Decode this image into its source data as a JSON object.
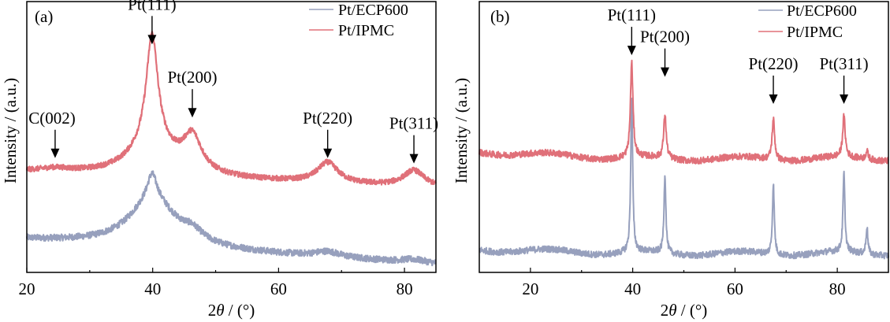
{
  "chart_data": [
    {
      "type": "line",
      "panel_label": "(a)",
      "title": "",
      "xlabel": "2θ / (°)",
      "ylabel": "Intensity / (a.u.)",
      "xlim": [
        20,
        85
      ],
      "xticks": [
        20,
        40,
        60,
        80
      ],
      "xticks_minor": [
        30,
        50,
        70
      ],
      "yticks": [],
      "grid": false,
      "legend_position": "top-right",
      "series": [
        {
          "name": "Pt/ECP600",
          "color": "#97a0bd",
          "baseline": [
            [
              20,
              0.12
            ],
            [
              30,
              0.15
            ],
            [
              36,
              0.22
            ],
            [
              40,
              0.4
            ],
            [
              42,
              0.23
            ],
            [
              46,
              0.17
            ],
            [
              50,
              0.11
            ],
            [
              60,
              0.07
            ],
            [
              68,
              0.085
            ],
            [
              75,
              0.055
            ],
            [
              81.5,
              0.07
            ],
            [
              85,
              0.04
            ]
          ],
          "peaks": [
            {
              "pos": 39.9,
              "height": 0.2,
              "width": 1.4
            },
            {
              "pos": 46.3,
              "height": 0.04,
              "width": 1.5
            },
            {
              "pos": 67.8,
              "height": 0.025,
              "width": 1.8
            },
            {
              "pos": 81.5,
              "height": 0.015,
              "width": 1.8
            }
          ],
          "noise": 0.012
        },
        {
          "name": "Pt/IPMC",
          "color": "#e07079",
          "baseline": [
            [
              20,
              0.38
            ],
            [
              25,
              0.395
            ],
            [
              30,
              0.39
            ],
            [
              35,
              0.43
            ],
            [
              37,
              0.5
            ]
          ],
          "base_level": 0.34,
          "peaks": [
            {
              "pos": 39.9,
              "height": 0.53,
              "width": 1.3,
              "shoulder": 0.16
            },
            {
              "pos": 46.3,
              "height": 0.22,
              "width": 2.0
            },
            {
              "pos": 67.8,
              "height": 0.09,
              "width": 2.2
            },
            {
              "pos": 81.5,
              "height": 0.06,
              "width": 2.2
            },
            {
              "pos": 24.5,
              "height": 0.01,
              "width": 3.0
            }
          ],
          "noise": 0.01
        }
      ],
      "annotations": [
        {
          "text": "C(002)",
          "x": 24.5,
          "label_x": 24,
          "label_y": 0.55
        },
        {
          "text": "Pt(111)",
          "x": 39.9,
          "label_x": 39.9,
          "label_y": 0.97
        },
        {
          "text": "Pt(200)",
          "x": 46.3,
          "label_x": 46.3,
          "label_y": 0.7
        },
        {
          "text": "Pt(220)",
          "x": 67.8,
          "label_x": 67.8,
          "label_y": 0.55
        },
        {
          "text": "Pt(311)",
          "x": 81.5,
          "label_x": 81.5,
          "label_y": 0.53
        }
      ]
    },
    {
      "type": "line",
      "panel_label": "(b)",
      "title": "",
      "xlabel": "2θ / (°)",
      "ylabel": "Intensity / (a.u.)",
      "xlim": [
        10,
        90
      ],
      "xticks": [
        20,
        40,
        60,
        80
      ],
      "xticks_minor": [
        30,
        50,
        70
      ],
      "yticks": [],
      "grid": false,
      "legend_position": "top-right",
      "series": [
        {
          "name": "Pt/ECP600",
          "color": "#97a0bd",
          "base_level": 0.07,
          "baseline_slope_start": 0.085,
          "peaks": [
            {
              "pos": 39.8,
              "height": 0.58,
              "width": 0.22
            },
            {
              "pos": 46.3,
              "height": 0.29,
              "width": 0.22
            },
            {
              "pos": 67.5,
              "height": 0.26,
              "width": 0.22
            },
            {
              "pos": 81.3,
              "height": 0.29,
              "width": 0.22
            },
            {
              "pos": 85.8,
              "height": 0.1,
              "width": 0.22
            }
          ],
          "noise": 0.012
        },
        {
          "name": "Pt/IPMC",
          "color": "#e07079",
          "base_level": 0.42,
          "baseline_slope_start": 0.445,
          "peaks": [
            {
              "pos": 39.8,
              "height": 0.35,
              "width": 0.3
            },
            {
              "pos": 46.3,
              "height": 0.16,
              "width": 0.3
            },
            {
              "pos": 67.5,
              "height": 0.15,
              "width": 0.3
            },
            {
              "pos": 81.3,
              "height": 0.15,
              "width": 0.3
            },
            {
              "pos": 85.8,
              "height": 0.03,
              "width": 0.3
            }
          ],
          "noise": 0.012
        }
      ],
      "annotations": [
        {
          "text": "Pt(111)",
          "x": 39.8,
          "label_x": 39.8,
          "label_y": 0.93
        },
        {
          "text": "Pt(200)",
          "x": 46.3,
          "label_x": 46.3,
          "label_y": 0.85
        },
        {
          "text": "Pt(220)",
          "x": 67.5,
          "label_x": 67.5,
          "label_y": 0.75
        },
        {
          "text": "Pt(311)",
          "x": 81.3,
          "label_x": 81.3,
          "label_y": 0.75
        }
      ]
    }
  ]
}
